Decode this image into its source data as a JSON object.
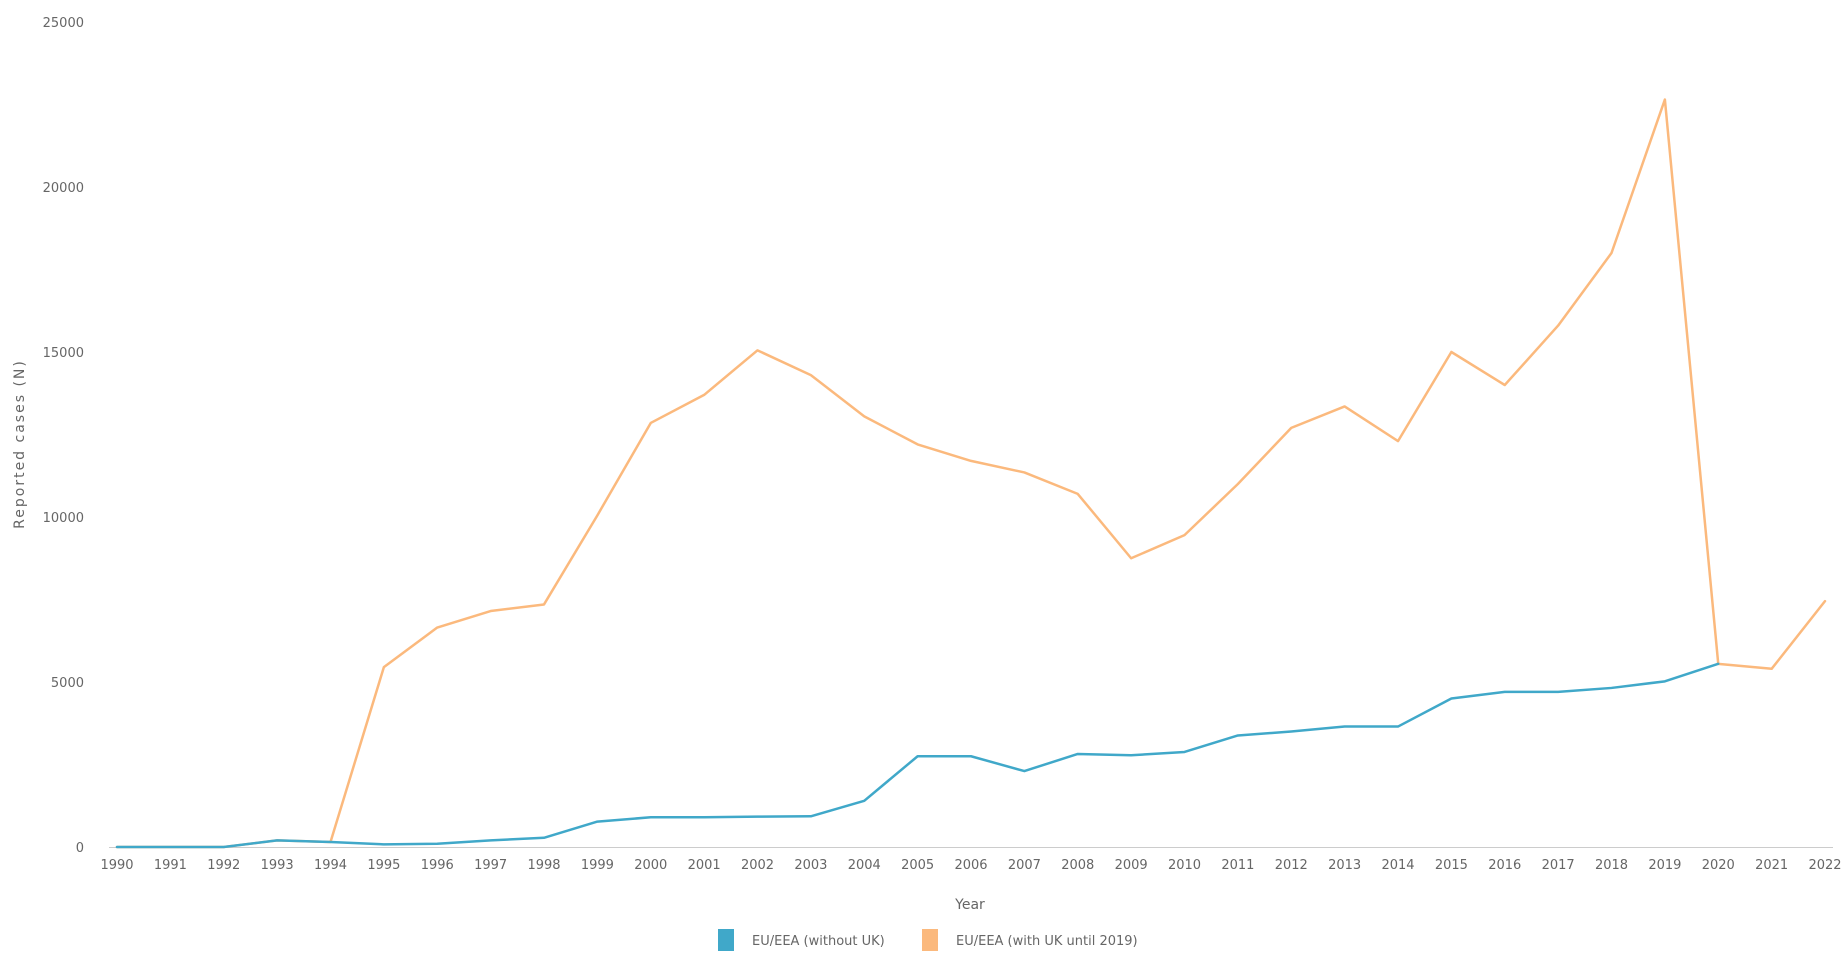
{
  "chart_data": {
    "type": "line",
    "title": "",
    "xlabel": "Year",
    "ylabel": "Reported cases (N)",
    "ylim": [
      0,
      25000
    ],
    "yticks": [
      "0",
      "5000",
      "10000",
      "15000",
      "20000",
      "25000"
    ],
    "x": [
      "1990",
      "1991",
      "1992",
      "1993",
      "1994",
      "1995",
      "1996",
      "1997",
      "1998",
      "1999",
      "2000",
      "2001",
      "2002",
      "2003",
      "2004",
      "2005",
      "2006",
      "2007",
      "2008",
      "2009",
      "2010",
      "2011",
      "2012",
      "2013",
      "2014",
      "2015",
      "2016",
      "2017",
      "2018",
      "2019",
      "2020",
      "2021",
      "2022"
    ],
    "series": [
      {
        "name": "EU/EEA (without UK)",
        "color": "#40a8c9",
        "values": [
          0,
          0,
          0,
          200,
          150,
          80,
          100,
          200,
          280,
          770,
          900,
          900,
          920,
          930,
          1400,
          2750,
          2750,
          2300,
          2820,
          2780,
          2880,
          3380,
          3500,
          3650,
          3650,
          4500,
          4700,
          4700,
          4820,
          5020,
          5550,
          null,
          null
        ]
      },
      {
        "name": "EU/EEA (with UK until 2019)",
        "color": "#fbb97d",
        "values": [
          0,
          0,
          0,
          200,
          150,
          5450,
          6650,
          7150,
          7350,
          10050,
          12850,
          13700,
          15050,
          14300,
          13050,
          12200,
          11700,
          11350,
          10700,
          8750,
          9450,
          11000,
          12700,
          13350,
          12300,
          15000,
          14000,
          15800,
          18000,
          22650,
          5550,
          5400,
          7450
        ]
      }
    ],
    "grid": false,
    "legend_position": "bottom-center"
  }
}
